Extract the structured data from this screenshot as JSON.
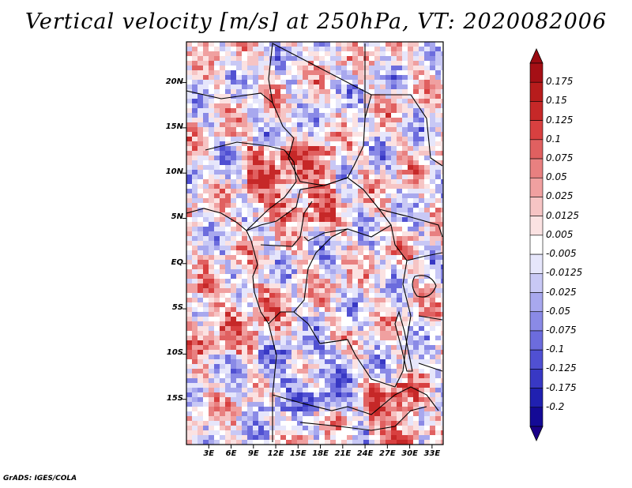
{
  "title": "Vertical velocity [m/s] at 250hPa, VT: 2020082006",
  "footer": "GrADS: IGES/COLA",
  "latitude_labels": [
    "20N",
    "15N",
    "10N",
    "5N",
    "EQ",
    "5S",
    "10S",
    "15S"
  ],
  "latitude_values": [
    20,
    15,
    10,
    5,
    0,
    -5,
    -10,
    -15
  ],
  "longitude_labels": [
    "3E",
    "6E",
    "9E",
    "12E",
    "15E",
    "18E",
    "21E",
    "24E",
    "27E",
    "30E",
    "33E"
  ],
  "longitude_values": [
    3,
    6,
    9,
    12,
    15,
    18,
    21,
    24,
    27,
    30,
    33
  ],
  "map_extent": {
    "lon_min": 0,
    "lon_max": 34.5,
    "lat_min": -20,
    "lat_max": 24.5
  },
  "colorbar": {
    "labels": [
      "0.175",
      "0.15",
      "0.125",
      "0.1",
      "0.075",
      "0.05",
      "0.025",
      "0.0125",
      "0.005",
      "-0.005",
      "-0.0125",
      "-0.025",
      "-0.05",
      "-0.075",
      "-0.1",
      "-0.125",
      "-0.175",
      "-0.2"
    ],
    "colors": [
      "#a50f15",
      "#b71c1c",
      "#c62828",
      "#d84040",
      "#e06060",
      "#e88080",
      "#f0a0a0",
      "#f6c4c4",
      "#fbe2e2",
      "#ffffff",
      "#e6e6fb",
      "#c8c8f5",
      "#a8a8ee",
      "#8a8ae6",
      "#6c6cdd",
      "#5050d2",
      "#3838c4",
      "#2020b0",
      "#140a96"
    ],
    "top_arrow_color": "#9a0b12",
    "bottom_arrow_color": "#1a0088"
  }
}
